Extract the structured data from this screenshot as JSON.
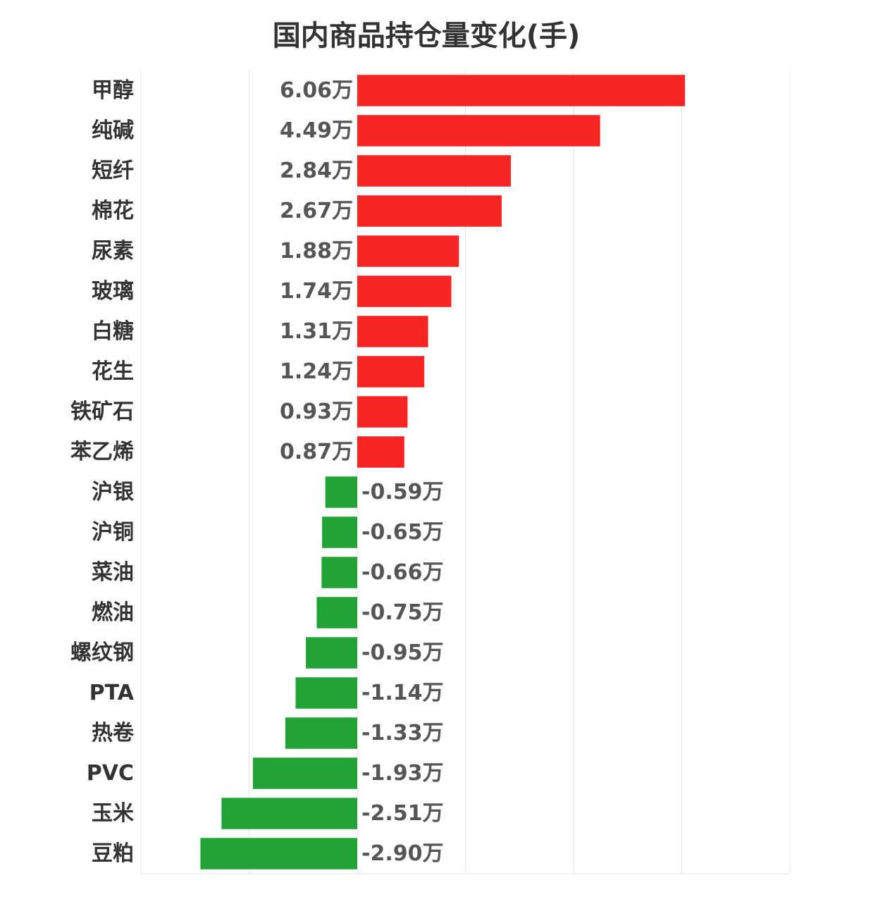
{
  "chart_data": {
    "type": "bar",
    "orientation": "horizontal",
    "title": "国内商品持仓量变化(手)",
    "xlabel": "",
    "ylabel": "",
    "unit_suffix": "万",
    "xlim": [
      -4,
      8
    ],
    "grid": true,
    "categories": [
      "甲醇",
      "纯碱",
      "短纤",
      "棉花",
      "尿素",
      "玻璃",
      "白糖",
      "花生",
      "铁矿石",
      "苯乙烯",
      "沪银",
      "沪铜",
      "菜油",
      "燃油",
      "螺纹钢",
      "PTA",
      "热卷",
      "PVC",
      "玉米",
      "豆粕"
    ],
    "values": [
      6.06,
      4.49,
      2.84,
      2.67,
      1.88,
      1.74,
      1.31,
      1.24,
      0.93,
      0.87,
      -0.59,
      -0.65,
      -0.66,
      -0.75,
      -0.95,
      -1.14,
      -1.33,
      -1.93,
      -2.51,
      -2.9
    ],
    "value_labels": [
      "6.06万",
      "4.49万",
      "2.84万",
      "2.67万",
      "1.88万",
      "1.74万",
      "1.31万",
      "1.24万",
      "0.93万",
      "0.87万",
      "-0.59万",
      "-0.65万",
      "-0.66万",
      "-0.75万",
      "-0.95万",
      "-1.14万",
      "-1.33万",
      "-1.93万",
      "-2.51万",
      "-2.90万"
    ],
    "colors": {
      "positive": "#f72424",
      "negative": "#21a336"
    }
  }
}
